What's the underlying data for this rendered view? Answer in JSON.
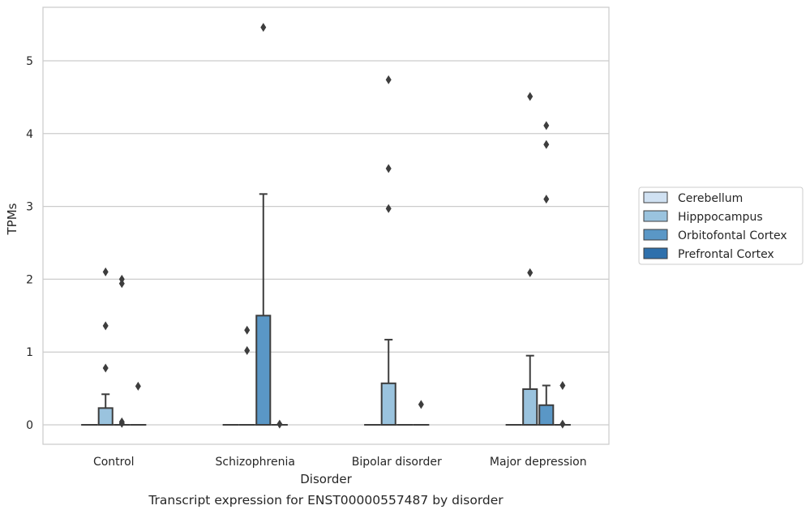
{
  "chart_data": {
    "type": "box",
    "title": "Transcript expression for ENST00000557487 by disorder",
    "xlabel": "Disorder",
    "ylabel": "TPMs",
    "ylim": [
      -0.27,
      5.75
    ],
    "yticks": [
      0,
      1,
      2,
      3,
      4,
      5
    ],
    "grid": "horizontal",
    "legend_position": "right",
    "categories": [
      "Control",
      "Schizophrenia",
      "Bipolar disorder",
      "Major depression"
    ],
    "series": [
      {
        "name": "Cerebellum",
        "color": "#d0e1f2",
        "boxes": [
          {
            "q1": 0,
            "median": 0,
            "q3": 0,
            "whisker_low": 0,
            "whisker_high": 0,
            "fliers": []
          },
          {
            "q1": 0,
            "median": 0,
            "q3": 0,
            "whisker_low": 0,
            "whisker_high": 0,
            "fliers": []
          },
          {
            "q1": 0,
            "median": 0,
            "q3": 0,
            "whisker_low": 0,
            "whisker_high": 0,
            "fliers": []
          },
          {
            "q1": 0,
            "median": 0,
            "q3": 0,
            "whisker_low": 0,
            "whisker_high": 0,
            "fliers": []
          }
        ]
      },
      {
        "name": "Hipppocampus",
        "color": "#9ac3de",
        "boxes": [
          {
            "q1": 0,
            "median": 0,
            "q3": 0.23,
            "whisker_low": 0,
            "whisker_high": 0.42,
            "fliers": [
              0.78,
              1.36,
              2.1
            ]
          },
          {
            "q1": 0,
            "median": 0,
            "q3": 0,
            "whisker_low": 0,
            "whisker_high": 0,
            "fliers": [
              1.02,
              1.3
            ]
          },
          {
            "q1": 0,
            "median": 0,
            "q3": 0.57,
            "whisker_low": 0,
            "whisker_high": 1.17,
            "fliers": [
              2.97,
              3.52,
              4.74
            ]
          },
          {
            "q1": 0,
            "median": 0,
            "q3": 0.49,
            "whisker_low": 0,
            "whisker_high": 0.95,
            "fliers": [
              2.09,
              4.51
            ]
          }
        ]
      },
      {
        "name": "Orbitofontal Cortex",
        "color": "#5a97c6",
        "boxes": [
          {
            "q1": 0,
            "median": 0,
            "q3": 0,
            "whisker_low": 0,
            "whisker_high": 0,
            "fliers": [
              0.02,
              0.04,
              1.94,
              2.0
            ]
          },
          {
            "q1": 0,
            "median": 0,
            "q3": 1.5,
            "whisker_low": 0,
            "whisker_high": 3.17,
            "fliers": [
              5.46
            ]
          },
          {
            "q1": 0,
            "median": 0,
            "q3": 0,
            "whisker_low": 0,
            "whisker_high": 0,
            "fliers": []
          },
          {
            "q1": 0,
            "median": 0,
            "q3": 0.27,
            "whisker_low": 0,
            "whisker_high": 0.54,
            "fliers": [
              3.1,
              3.85,
              4.11
            ]
          }
        ]
      },
      {
        "name": "Prefrontal Cortex",
        "color": "#2e70ac",
        "boxes": [
          {
            "q1": 0,
            "median": 0,
            "q3": 0,
            "whisker_low": 0,
            "whisker_high": 0,
            "fliers": [
              0.53
            ]
          },
          {
            "q1": 0,
            "median": 0,
            "q3": 0,
            "whisker_low": 0,
            "whisker_high": 0,
            "fliers": [
              0.01
            ]
          },
          {
            "q1": 0,
            "median": 0,
            "q3": 0,
            "whisker_low": 0,
            "whisker_high": 0,
            "fliers": [
              0.28
            ]
          },
          {
            "q1": 0,
            "median": 0,
            "q3": 0,
            "whisker_low": 0,
            "whisker_high": 0,
            "fliers": [
              0.01,
              0.54
            ]
          }
        ]
      }
    ]
  }
}
